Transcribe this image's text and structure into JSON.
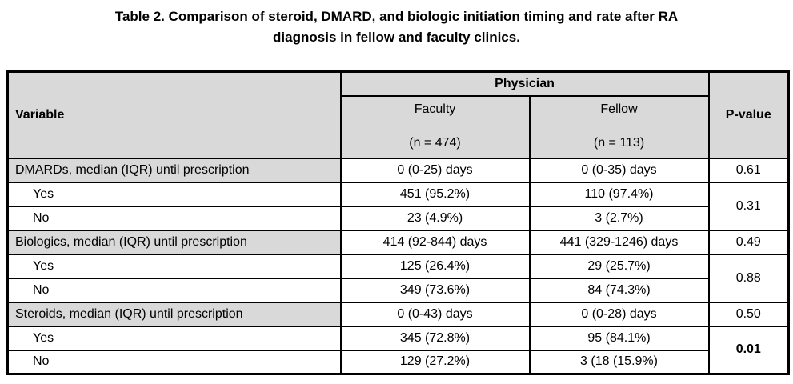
{
  "colors": {
    "header_bg": "#d9d9d9",
    "border": "#000000",
    "background": "#ffffff"
  },
  "caption": {
    "line1": "Table 2. Comparison of steroid, DMARD, and biologic initiation timing and rate after RA",
    "line2": "diagnosis in fellow and faculty clinics."
  },
  "table": {
    "header": {
      "variable": "Variable",
      "physician": "Physician",
      "faculty_name": "Faculty",
      "faculty_n": "(n = 474)",
      "fellow_name": "Fellow",
      "fellow_n": "(n = 113)",
      "p_value": "P-value"
    },
    "rows": [
      {
        "variable": "DMARDs, median (IQR) until prescription",
        "faculty": "0 (0-25) days",
        "fellow": "0 (0-35) days",
        "p": "0.61"
      },
      {
        "variable": "Yes",
        "faculty": "451 (95.2%)",
        "fellow": "110 (97.4%)",
        "p": "0.31"
      },
      {
        "variable": "No",
        "faculty": "23 (4.9%)",
        "fellow": "3 (2.7%)"
      },
      {
        "variable": "Biologics, median (IQR) until prescription",
        "faculty": "414 (92-844) days",
        "fellow": "441 (329-1246) days",
        "p": "0.49"
      },
      {
        "variable": "Yes",
        "faculty": "125 (26.4%)",
        "fellow": "29 (25.7%)",
        "p": "0.88"
      },
      {
        "variable": "No",
        "faculty": "349 (73.6%)",
        "fellow": "84 (74.3%)"
      },
      {
        "variable": "Steroids, median (IQR) until prescription",
        "faculty": "0 (0-43) days",
        "fellow": "0 (0-28) days",
        "p": "0.50"
      },
      {
        "variable": "Yes",
        "faculty": "345 (72.8%)",
        "fellow": "95 (84.1%)",
        "p": "0.01"
      },
      {
        "variable": "No",
        "faculty": "129 (27.2%)",
        "fellow": "3 (18 (15.9%)"
      }
    ]
  }
}
